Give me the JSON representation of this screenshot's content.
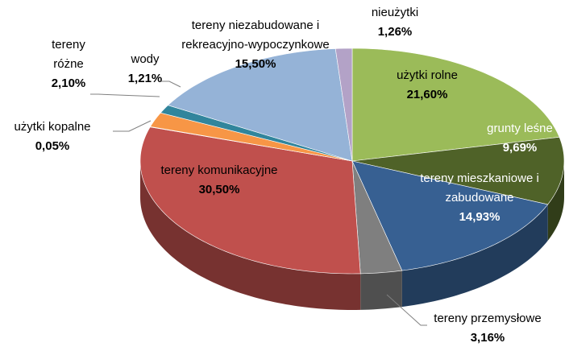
{
  "chart_data": {
    "type": "pie3d",
    "categories": [
      "użytki rolne",
      "grunty leśne",
      "tereny mieszkaniowe i zabudowane",
      "tereny przemysłowe",
      "tereny komunikacyjne",
      "użytki kopalne",
      "tereny różne",
      "wody",
      "tereny niezabudowane i rekreacyjno-wypoczynkowe",
      "nieużytki"
    ],
    "values": [
      21.6,
      9.69,
      14.93,
      3.16,
      30.5,
      0.05,
      2.1,
      1.21,
      15.5,
      1.26
    ],
    "value_labels": [
      "21,60%",
      "9,69%",
      "14,93%",
      "3,16%",
      "30,50%",
      "0,05%",
      "2,10%",
      "1,21%",
      "15,50%",
      "1,26%"
    ],
    "colors": [
      "#9bbb59",
      "#4f6228",
      "#376092",
      "#7f7f7f",
      "#c0504d",
      "#7f7f7f",
      "#f79646",
      "#31859c",
      "#95b3d7",
      "#b3a2c7"
    ]
  }
}
